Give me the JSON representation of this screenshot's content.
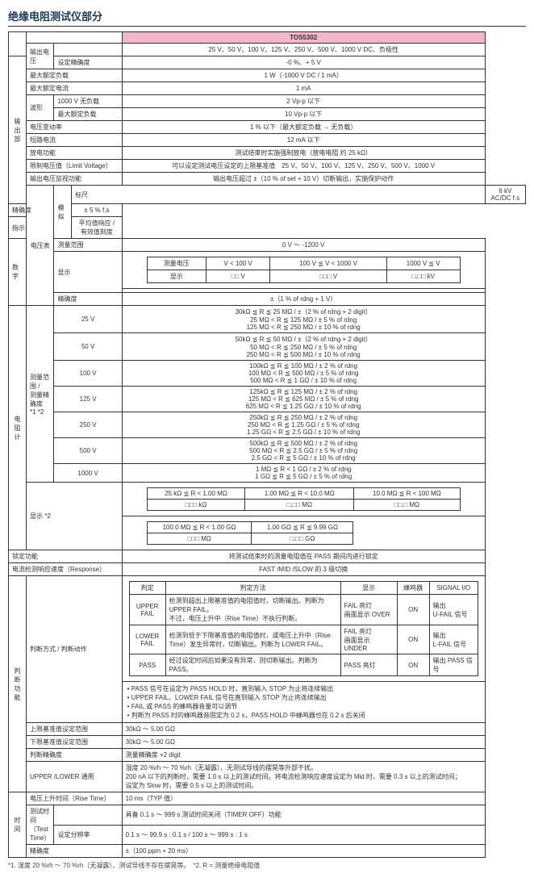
{
  "title": "绝缘电阻测试仪部分",
  "model": "TOS5302",
  "output": {
    "section": "输出部",
    "voltage": {
      "label": "输出电压",
      "val": "25 V、50 V、100 V、125 V、250 V、500 V、1000 V DC、负极性"
    },
    "accuracy": {
      "label": "设定精确度",
      "val": "-0 %、+ 5 V"
    },
    "maxload": {
      "label": "最大额定负载",
      "val": "1 W（-1000 V DC / 1 mA）"
    },
    "maxcurrent": {
      "label": "最大额定电流",
      "val": "1 mA"
    },
    "waveform": {
      "label": "波形",
      "noload": "1000 V 无负载",
      "noload_val": "2 Vp-p 以下",
      "maxload": "最大额定负载",
      "maxload_val": "10 Vp-p 以下"
    },
    "varrate": {
      "label": "电压变动率",
      "val": "1 % 以下（最大额定负载 → 无负载）"
    },
    "shortcurrent": {
      "label": "短路电流",
      "val": "12 mA 以下"
    },
    "discharge": {
      "label": "放电功能",
      "val": "测试结束时实施强制放电（放电电阻 约 25 kΩ）"
    },
    "limitv": {
      "label": "限制电压值（Limit Voltage）",
      "val": "可以设定测试电压设定的上限基准值　25 V、50 V、100 V、125 V、250 V、500 V、1000 V"
    },
    "monitor": {
      "label": "输出电压监视功能",
      "val": "输出电压超过 ±（10 % of set + 10 V）切断输出，实施保护动作"
    }
  },
  "voltmeter": {
    "section": "电压表",
    "analog": {
      "label": "模拟",
      "scale": "标尺",
      "scale_val": "6 kV AC/DC f.s",
      "acc": "精确度",
      "acc_val": "± 5 % f.s",
      "ind": "指示",
      "ind_val": "平均值响应 / 有效值刻度"
    },
    "digital": {
      "label": "数字",
      "range": "测量范围",
      "range_val": "0 V ～ -1200 V",
      "disp": "显示",
      "hdr1": "测量电压",
      "hdr2": "V < 100 V",
      "hdr3": "100 V ≦ V < 1000 V",
      "hdr4": "1000 V ≦ V",
      "row_lbl": "显示",
      "c1": "□□ V",
      "c2": "□□□ V",
      "c3": "□.□□ kV",
      "acc": "精确度",
      "acc_val": "±（1 % of rdng + 1 V）"
    }
  },
  "ohmmeter": {
    "section": "电阻计",
    "range": {
      "label": "测量范围 /\n测量精确度\n*1 *2",
      "rows": [
        {
          "v": "25 V",
          "lines": [
            "30kΩ ≦ R ≦ 25 MΩ / ±（2 % of rdng + 2 digit）",
            "25 MΩ < R ≦ 125 MΩ / ± 5 % of rdng",
            "125 MΩ < R ≦ 250 MΩ / ± 10 % of rdng"
          ]
        },
        {
          "v": "50 V",
          "lines": [
            "50kΩ ≦ R ≦ 50 MΩ / ±（2 % of rdng + 2 digit）",
            "50 MΩ < R ≦ 250 MΩ / ± 5 % of rdng",
            "250 MΩ < R ≦ 500 MΩ / ± 10 % of rdng"
          ]
        },
        {
          "v": "100 V",
          "lines": [
            "100kΩ ≦ R ≦ 100 MΩ / ± 2 % of rdng",
            "100 MΩ < R ≦ 500 MΩ / ± 5 % of rdng",
            "500 MΩ < R ≦ 1 GΩ / ± 10 % of rdng"
          ]
        },
        {
          "v": "125 V",
          "lines": [
            "125kΩ ≦ R ≦ 125 MΩ / ± 2 % of rdng",
            "125 MΩ < R ≦ 625 MΩ / ± 5 % of rdng",
            "625 MΩ < R ≦ 1.25 GΩ / ± 10 % of rdng"
          ]
        },
        {
          "v": "250 V",
          "lines": [
            "250kΩ ≦ R ≦ 250 MΩ / ± 2 % of rdng",
            "250 MΩ < R ≦ 1.25 GΩ / ± 5 % of rdng",
            "1.25 GΩ < R ≦ 2.5 GΩ / ± 10 % of rdng"
          ]
        },
        {
          "v": "500 V",
          "lines": [
            "500kΩ ≦ R ≦ 500 MΩ / ± 2 % of rdng",
            "500 MΩ < R ≦ 2.5 GΩ / ± 5 % of rdng",
            "2.5 GΩ < R ≦ 5 GΩ / ± 10 % of rdng"
          ]
        },
        {
          "v": "1000 V",
          "lines": [
            "1 MΩ ≦ R < 1 GΩ / ± 2 % of rdng",
            "1 GΩ ≦ R ≦ 5 GΩ / ± 5 % of rdng"
          ]
        }
      ]
    },
    "disp": {
      "label": "显示 *2",
      "r1": [
        {
          "rng": "25 kΩ ≦ R < 1.00 MΩ",
          "fmt": "□□□ kΩ"
        },
        {
          "rng": "1.00 MΩ ≦ R < 10.0 MΩ",
          "fmt": "□.□□ MΩ"
        },
        {
          "rng": "10.0 MΩ ≦ R < 100 MΩ",
          "fmt": "□□.□ MΩ"
        }
      ],
      "r2": [
        {
          "rng": "100.0 MΩ ≦ R < 1.00 GΩ",
          "fmt": "□□□ MΩ"
        },
        {
          "rng": "1.00 GΩ ≦ R ≦ 9.99 GΩ",
          "fmt": "□.□□ GΩ"
        }
      ]
    }
  },
  "lock": {
    "label": "锁定功能",
    "val": "将测试结束时的测量电阻值在 PASS 期间内进行锁定"
  },
  "response": {
    "label": "电流检测响应速度（Response）",
    "val": "FAST /MID /SLOW 的 3 级切换"
  },
  "judge": {
    "section": "判断\n功能",
    "method": {
      "label": "判断方式 / 判断动作",
      "hdr": [
        "判定",
        "判定方法",
        "显示",
        "蜂鸣器",
        "SIGNAL I/O"
      ],
      "rows": [
        {
          "j": "UPPER FAIL",
          "m": "检测到超出上限基准值的电阻值时，切断输出。判断为 UPPER FAIL。\n不过，电压上升中（Rise Time）不执行判断。",
          "d": "FAIL 亮灯\n画面显示 OVER",
          "b": "ON",
          "s": "输出\nU-FAIL 信号"
        },
        {
          "j": "LOWER FAIL",
          "m": "检测到低于下限基准值的电阻值时，或电压上升中（Rise Time）发生异常时，切断输出。判断为 LOWER FAIL。",
          "d": "FAIL 亮灯\n画面显示 UNDER",
          "b": "ON",
          "s": "输出\nL-FAIL 信号"
        },
        {
          "j": "PASS",
          "m": "经过设定时间后如果没有异常，则切断输出。判断为 PASS。",
          "d": "PASS 亮灯",
          "b": "ON",
          "s": "输出 PASS 信号"
        }
      ],
      "notes": [
        "• PASS 信号在设定为 PASS HOLD 时，直到输入 STOP 为止将连续输出",
        "• UPPER FAIL、LOWER FAIL 信号在直到输入 STOP 为止将连续输出",
        "• FAIL 或 PASS 的蜂鸣器音量可以调节",
        "• 判断为 PASS 时的蜂鸣器音固定为 0.2 s，PASS HOLD 中蜂鸣器也在 0.2 s 后关闭"
      ]
    },
    "upper": {
      "label": "上限基准值设定范围",
      "val": "30kΩ ～ 5.00 GΩ"
    },
    "lower": {
      "label": "下限基准值设定范围",
      "val": "30kΩ ～ 5.00 GΩ"
    },
    "jacc": {
      "label": "判断精确度",
      "val": "测量精确度 +2 digit"
    },
    "common": {
      "label": "UPPER /LOWER 通用",
      "val": "湿度 20 %rh ～ 70 %rh（无凝露）、无测试导线的摆晃等外部干扰。\n200 nA 以下的判断时，需要 1.0 s 以上的测试时间。将电流检测响应速度设定为 Mid 时，需要 0.3 s 以上的测试时间；\n设定为 Slow 时，需要 0.5 s 以上的测试时间。"
    }
  },
  "time": {
    "section": "时间",
    "rise": {
      "label": "电压上升时间（Rise Time）",
      "val": "10 ms（TYP 值）"
    },
    "test": {
      "label": "测试时间（Test Time）",
      "val": "具备 0.1 s ～ 999 s 测试时间关闭（TIMER OFF）功能"
    },
    "res": {
      "label": "设定分辨率",
      "val": "0.1 s ～ 99.9 s : 0.1 s / 100 s ～ 999 s : 1 s"
    },
    "acc": {
      "label": "精确度",
      "val": "±（100 ppm + 20 ms）"
    }
  },
  "footnote": "*1. 湿度 20 %rh ～ 70 %rh（无凝露）、测试导线不存在摆晃等。　*2. R = 测量绝缘电阻值"
}
